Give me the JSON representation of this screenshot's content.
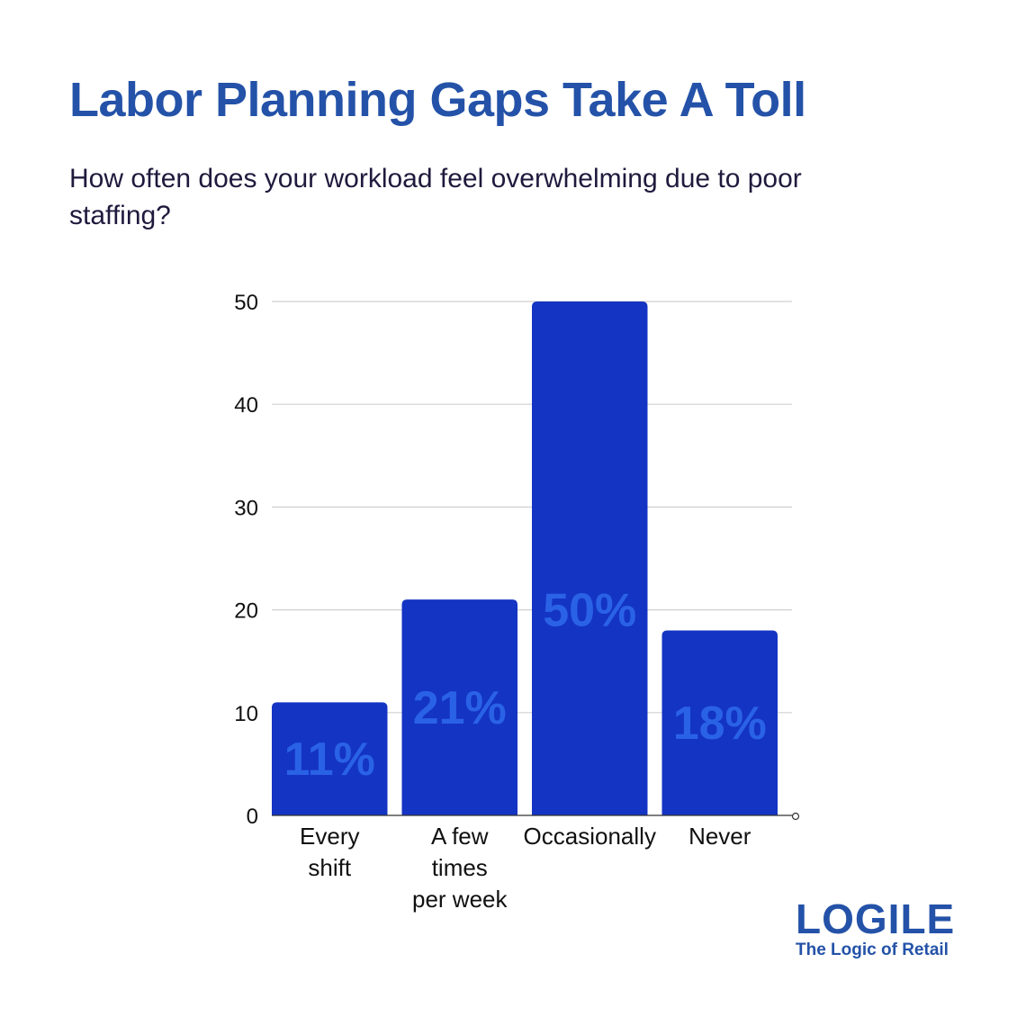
{
  "page": {
    "title": "Labor Planning Gaps Take A Toll",
    "subtitle": "How often does your workload feel overwhelming due to poor staffing?"
  },
  "logo": {
    "wordmark": "LOGILE",
    "tagline": "The Logic of Retail",
    "color": "#2452a8"
  },
  "chart_data": {
    "type": "bar",
    "title": "",
    "xlabel": "",
    "ylabel": "",
    "categories": [
      [
        "Every",
        "shift"
      ],
      [
        "A few",
        "times",
        "per week"
      ],
      [
        "Occasionally"
      ],
      [
        "Never"
      ]
    ],
    "values": [
      11,
      21,
      50,
      18
    ],
    "data_labels": [
      "11%",
      "21%",
      "50%",
      "18%"
    ],
    "ylim": [
      0,
      50
    ],
    "yticks": [
      0,
      10,
      20,
      30,
      40,
      50
    ],
    "grid": true,
    "legend": "none",
    "colors": {
      "bar": "#1434c4",
      "data_label": "#2a62e6",
      "grid": "#d0d0d0",
      "axis": "#333333",
      "tick_text": "#111111"
    }
  }
}
